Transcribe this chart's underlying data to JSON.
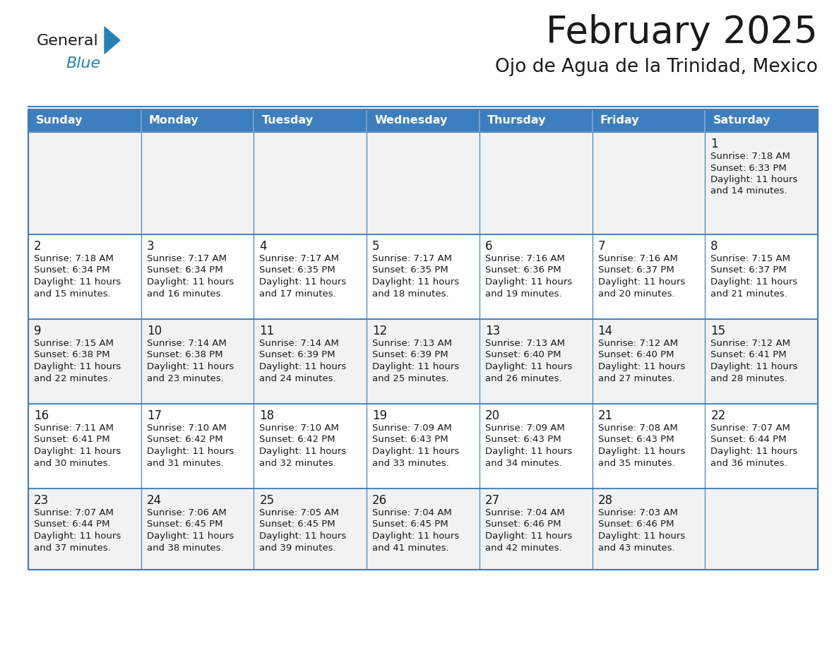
{
  "title": "February 2025",
  "subtitle": "Ojo de Agua de la Trinidad, Mexico",
  "header_bg": "#3d7ebf",
  "header_text_color": "#FFFFFF",
  "cell_bg_odd": "#F2F2F2",
  "cell_bg_even": "#FFFFFF",
  "border_color": "#3d7ebf",
  "day_names": [
    "Sunday",
    "Monday",
    "Tuesday",
    "Wednesday",
    "Thursday",
    "Friday",
    "Saturday"
  ],
  "calendar": [
    [
      null,
      null,
      null,
      null,
      null,
      null,
      1
    ],
    [
      2,
      3,
      4,
      5,
      6,
      7,
      8
    ],
    [
      9,
      10,
      11,
      12,
      13,
      14,
      15
    ],
    [
      16,
      17,
      18,
      19,
      20,
      21,
      22
    ],
    [
      23,
      24,
      25,
      26,
      27,
      28,
      null
    ]
  ],
  "sunrise": {
    "1": "7:18 AM",
    "2": "7:18 AM",
    "3": "7:17 AM",
    "4": "7:17 AM",
    "5": "7:17 AM",
    "6": "7:16 AM",
    "7": "7:16 AM",
    "8": "7:15 AM",
    "9": "7:15 AM",
    "10": "7:14 AM",
    "11": "7:14 AM",
    "12": "7:13 AM",
    "13": "7:13 AM",
    "14": "7:12 AM",
    "15": "7:12 AM",
    "16": "7:11 AM",
    "17": "7:10 AM",
    "18": "7:10 AM",
    "19": "7:09 AM",
    "20": "7:09 AM",
    "21": "7:08 AM",
    "22": "7:07 AM",
    "23": "7:07 AM",
    "24": "7:06 AM",
    "25": "7:05 AM",
    "26": "7:04 AM",
    "27": "7:04 AM",
    "28": "7:03 AM"
  },
  "sunset": {
    "1": "6:33 PM",
    "2": "6:34 PM",
    "3": "6:34 PM",
    "4": "6:35 PM",
    "5": "6:35 PM",
    "6": "6:36 PM",
    "7": "6:37 PM",
    "8": "6:37 PM",
    "9": "6:38 PM",
    "10": "6:38 PM",
    "11": "6:39 PM",
    "12": "6:39 PM",
    "13": "6:40 PM",
    "14": "6:40 PM",
    "15": "6:41 PM",
    "16": "6:41 PM",
    "17": "6:42 PM",
    "18": "6:42 PM",
    "19": "6:43 PM",
    "20": "6:43 PM",
    "21": "6:43 PM",
    "22": "6:44 PM",
    "23": "6:44 PM",
    "24": "6:45 PM",
    "25": "6:45 PM",
    "26": "6:45 PM",
    "27": "6:46 PM",
    "28": "6:46 PM"
  },
  "daylight_minutes": {
    "1": "14",
    "2": "15",
    "3": "16",
    "4": "17",
    "5": "18",
    "6": "19",
    "7": "20",
    "8": "21",
    "9": "22",
    "10": "23",
    "11": "24",
    "12": "25",
    "13": "26",
    "14": "27",
    "15": "28",
    "16": "30",
    "17": "31",
    "18": "32",
    "19": "33",
    "20": "34",
    "21": "35",
    "22": "36",
    "23": "37",
    "24": "38",
    "25": "39",
    "26": "41",
    "27": "42",
    "28": "43"
  }
}
